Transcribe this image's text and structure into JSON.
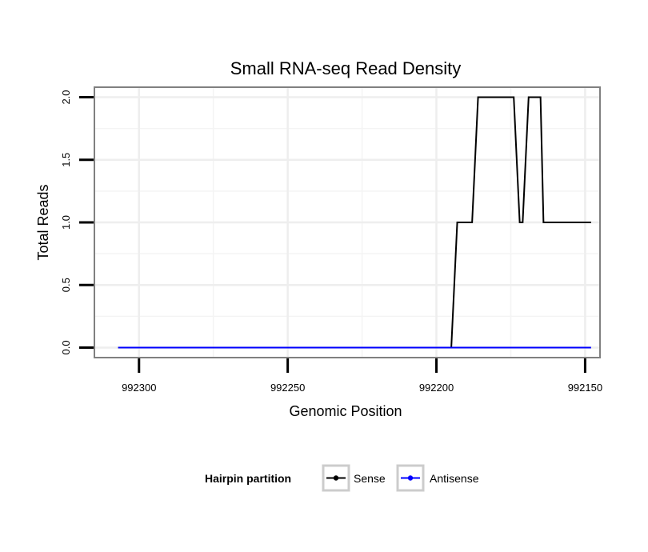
{
  "chart_data": {
    "type": "line",
    "title": "Small RNA-seq Read Density",
    "xlabel": "Genomic Position",
    "ylabel": "Total Reads",
    "xlim": [
      992315,
      992145
    ],
    "x_reversed": true,
    "ylim": [
      -0.08,
      2.08
    ],
    "xticks": [
      992300,
      992250,
      992200,
      992150
    ],
    "xtick_labels": [
      "992300",
      "992250",
      "992200",
      "992150"
    ],
    "yticks": [
      0,
      0.5,
      1,
      1.5,
      2
    ],
    "ytick_labels": [
      "0.0",
      "0.5",
      "1.0",
      "1.5",
      "2.0"
    ],
    "grid": true,
    "legend": {
      "title": "Hairpin partition",
      "position": "bottom",
      "entries": [
        "Sense",
        "Antisense"
      ]
    },
    "series": [
      {
        "name": "Sense",
        "color": "#000000",
        "points": [
          [
            992307,
            0
          ],
          [
            992195,
            0
          ],
          [
            992193,
            1
          ],
          [
            992188,
            1
          ],
          [
            992186,
            2
          ],
          [
            992174,
            2
          ],
          [
            992172,
            1
          ],
          [
            992171,
            1
          ],
          [
            992169,
            2
          ],
          [
            992165,
            2
          ],
          [
            992164,
            1
          ],
          [
            992148,
            1
          ]
        ]
      },
      {
        "name": "Antisense",
        "color": "#0000ff",
        "points": [
          [
            992307,
            0
          ],
          [
            992148,
            0
          ]
        ]
      }
    ]
  }
}
